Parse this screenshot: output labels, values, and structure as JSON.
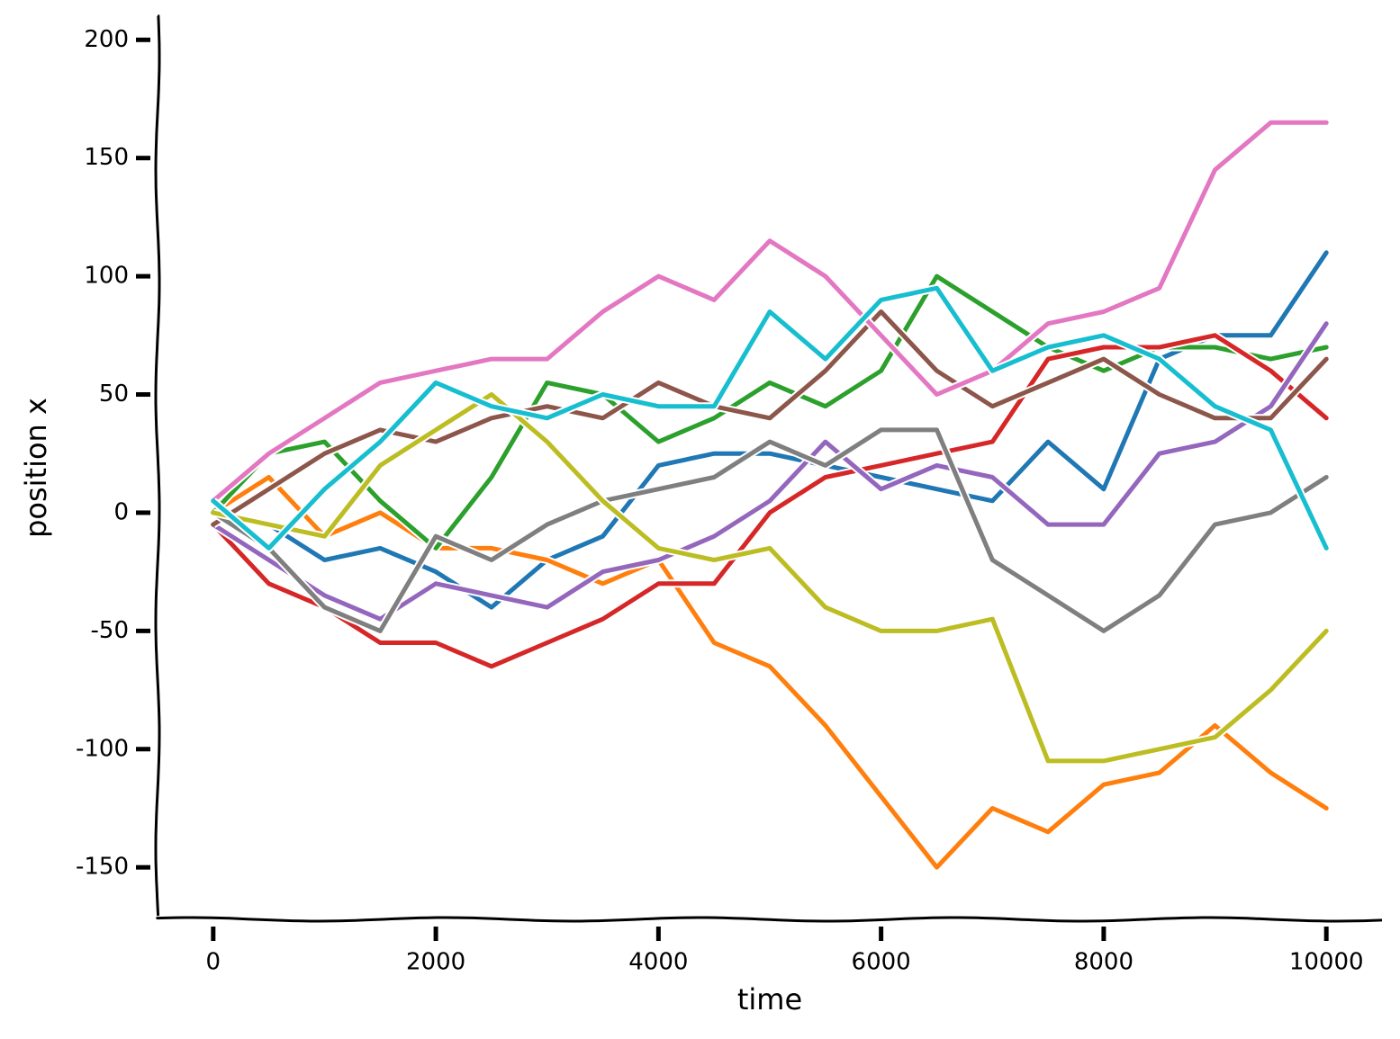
{
  "chart_data": {
    "type": "line",
    "x_label": "time",
    "y_label": "position x",
    "x": [
      0,
      500,
      1000,
      1500,
      2000,
      2500,
      3000,
      3500,
      4000,
      4500,
      5000,
      5500,
      6000,
      6500,
      7000,
      7500,
      8000,
      8500,
      9000,
      9500,
      10000
    ],
    "series": [
      {
        "color": "#1f77b4",
        "values": [
          0,
          -5,
          -20,
          -15,
          -25,
          -40,
          -20,
          -10,
          20,
          25,
          25,
          20,
          15,
          10,
          5,
          30,
          10,
          65,
          75,
          75,
          110
        ]
      },
      {
        "color": "#ff7f0e",
        "values": [
          0,
          15,
          -10,
          0,
          -15,
          -15,
          -20,
          -30,
          -20,
          -55,
          -65,
          -90,
          -120,
          -150,
          -125,
          -135,
          -115,
          -110,
          -90,
          -110,
          -125
        ]
      },
      {
        "color": "#2ca02c",
        "values": [
          0,
          25,
          30,
          5,
          -15,
          15,
          55,
          50,
          30,
          40,
          55,
          45,
          60,
          100,
          85,
          70,
          60,
          70,
          70,
          65,
          70
        ]
      },
      {
        "color": "#d62728",
        "values": [
          -5,
          -30,
          -40,
          -55,
          -55,
          -65,
          -55,
          -45,
          -30,
          -30,
          0,
          15,
          20,
          25,
          30,
          65,
          70,
          70,
          75,
          60,
          40
        ]
      },
      {
        "color": "#9467bd",
        "values": [
          -5,
          -20,
          -35,
          -45,
          -30,
          -35,
          -40,
          -25,
          -20,
          -10,
          5,
          30,
          10,
          20,
          15,
          -5,
          -5,
          25,
          30,
          45,
          80
        ]
      },
      {
        "color": "#8c564b",
        "values": [
          -5,
          10,
          25,
          35,
          30,
          40,
          45,
          40,
          55,
          45,
          40,
          60,
          85,
          60,
          45,
          55,
          65,
          50,
          40,
          40,
          65
        ]
      },
      {
        "color": "#e377c2",
        "values": [
          5,
          25,
          40,
          55,
          60,
          65,
          65,
          85,
          100,
          90,
          115,
          100,
          75,
          50,
          60,
          80,
          85,
          95,
          145,
          165,
          165
        ]
      },
      {
        "color": "#7f7f7f",
        "values": [
          0,
          -15,
          -40,
          -50,
          -10,
          -20,
          -5,
          5,
          10,
          15,
          30,
          20,
          35,
          35,
          -20,
          -35,
          -50,
          -35,
          -5,
          0,
          15
        ]
      },
      {
        "color": "#bcbd22",
        "values": [
          0,
          -5,
          -10,
          20,
          35,
          50,
          30,
          5,
          -15,
          -20,
          -15,
          -40,
          -50,
          -50,
          -45,
          -105,
          -105,
          -100,
          -95,
          -75,
          -50
        ]
      },
      {
        "color": "#17becf",
        "values": [
          5,
          -15,
          10,
          30,
          55,
          45,
          40,
          50,
          45,
          45,
          85,
          65,
          90,
          95,
          60,
          70,
          75,
          65,
          45,
          35,
          -15
        ]
      }
    ],
    "xlim": [
      -500,
      10500
    ],
    "ylim": [
      -172,
      210
    ],
    "xticks": [
      0,
      2000,
      4000,
      6000,
      8000,
      10000
    ],
    "yticks": [
      -150,
      -100,
      -50,
      0,
      50,
      100,
      150,
      200
    ]
  }
}
